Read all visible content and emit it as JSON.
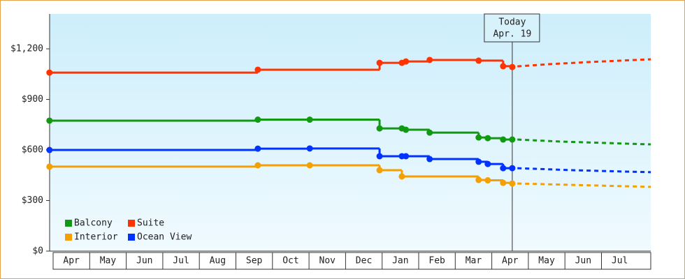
{
  "chart_data": {
    "type": "step-line",
    "categories": [
      "Apr",
      "May",
      "Jun",
      "Jul",
      "Aug",
      "Sep",
      "Oct",
      "Nov",
      "Dec",
      "Jan",
      "Feb",
      "Mar",
      "Apr",
      "May",
      "Jun",
      "Jul"
    ],
    "xlim": [
      -0.1,
      16.35
    ],
    "ylim": [
      0,
      1407
    ],
    "yticks": [
      {
        "value": 0,
        "label": "$0"
      },
      {
        "value": 300,
        "label": "$300"
      },
      {
        "value": 600,
        "label": "$600"
      },
      {
        "value": 900,
        "label": "$900"
      },
      {
        "value": 1200,
        "label": "$1,200"
      }
    ],
    "legend": "bottom-left",
    "annotation": {
      "x": 12.56,
      "lines": [
        "Today",
        "Apr. 19"
      ]
    },
    "series": [
      {
        "name": "Balcony",
        "color": "#119911",
        "x": [
          -0.1,
          5.6,
          7.02,
          8.93,
          9.54,
          9.65,
          10.3,
          11.64,
          11.89,
          12.31,
          12.56
        ],
        "values": [
          774,
          780,
          780,
          728,
          728,
          720,
          703,
          674,
          670,
          662,
          662
        ],
        "forecast_x": [
          12.7,
          13.85,
          16.35
        ],
        "forecast_values": [
          662,
          650,
          633
        ]
      },
      {
        "name": "Suite",
        "color": "#ff3300",
        "x": [
          -0.1,
          5.6,
          8.93,
          9.54,
          9.65,
          10.3,
          11.64,
          12.31,
          12.56
        ],
        "values": [
          1059,
          1076,
          1117,
          1117,
          1125,
          1134,
          1130,
          1097,
          1092
        ],
        "forecast_x": [
          12.7,
          13.65,
          14.6,
          16.35
        ],
        "forecast_values": [
          1096,
          1110,
          1121,
          1138
        ]
      },
      {
        "name": "Interior",
        "color": "#f5a000",
        "x": [
          -0.1,
          5.6,
          7.02,
          8.93,
          9.54,
          11.64,
          11.89,
          12.31,
          12.56
        ],
        "values": [
          501,
          509,
          509,
          480,
          443,
          422,
          420,
          405,
          401
        ],
        "forecast_x": [
          12.7,
          16.35
        ],
        "forecast_values": [
          401,
          381
        ]
      },
      {
        "name": "Ocean View",
        "color": "#0033ff",
        "x": [
          -0.1,
          5.6,
          7.02,
          8.93,
          9.54,
          9.65,
          10.3,
          11.64,
          11.89,
          12.31,
          12.56
        ],
        "values": [
          600,
          608,
          609,
          563,
          563,
          563,
          546,
          530,
          517,
          492,
          492
        ],
        "forecast_x": [
          12.7,
          14.22,
          16.35
        ],
        "forecast_values": [
          492,
          480,
          468
        ]
      }
    ]
  }
}
